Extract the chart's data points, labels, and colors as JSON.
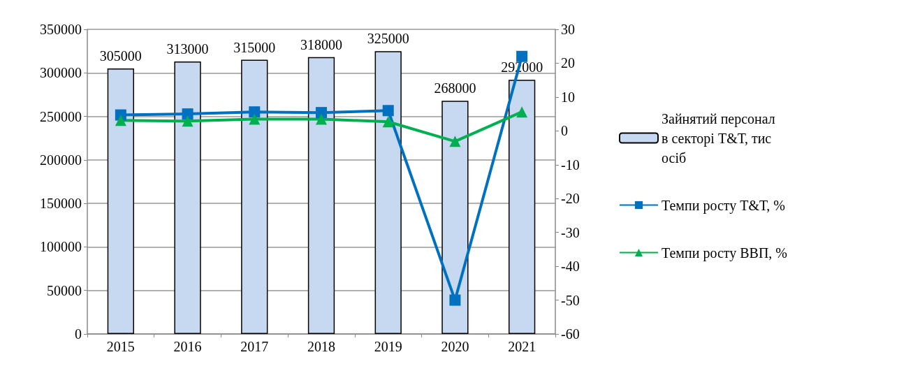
{
  "chart_data": {
    "type": "bar",
    "categories": [
      "2015",
      "2016",
      "2017",
      "2018",
      "2019",
      "2020",
      "2021"
    ],
    "series": [
      {
        "name": "Зайнятий персонал в секторі Т&Т, тис осіб",
        "color": "#c6d9f0",
        "values": [
          305000,
          313000,
          315000,
          318000,
          325000,
          268000,
          292000
        ],
        "data_labels": true
      },
      {
        "name": "Темпи росту Т&Т, %",
        "type": "line",
        "axis": "y2",
        "color": "#0070c0",
        "marker": "square",
        "values": [
          4.7,
          5.0,
          5.6,
          5.4,
          6.0,
          -50,
          22
        ]
      },
      {
        "name": "Темпи росту ВВП, %",
        "type": "line",
        "axis": "y2",
        "color": "#00b050",
        "marker": "triangle",
        "values": [
          3.1,
          2.9,
          3.5,
          3.5,
          2.7,
          -3.1,
          5.6
        ]
      }
    ],
    "ylim": [
      0,
      350000
    ],
    "yticks": [
      0,
      50000,
      100000,
      150000,
      200000,
      250000,
      300000,
      350000
    ],
    "y2lim": [
      -60,
      30
    ],
    "y2ticks": [
      -60,
      -50,
      -40,
      -30,
      -20,
      -10,
      0,
      10,
      20,
      30
    ],
    "grid": "y",
    "legend": "right"
  }
}
